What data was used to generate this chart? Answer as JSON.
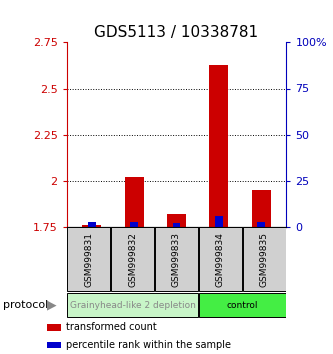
{
  "title": "GDS5113 / 10338781",
  "samples": [
    "GSM999831",
    "GSM999832",
    "GSM999833",
    "GSM999834",
    "GSM999835"
  ],
  "red_values": [
    1.757,
    2.02,
    1.82,
    2.63,
    1.95
  ],
  "blue_values_pct": [
    2.5,
    2.5,
    2.0,
    5.5,
    2.5
  ],
  "ylim_left": [
    1.75,
    2.75
  ],
  "ylim_right": [
    0,
    100
  ],
  "yticks_left": [
    1.75,
    2.0,
    2.25,
    2.5,
    2.75
  ],
  "yticks_right": [
    0,
    25,
    50,
    75,
    100
  ],
  "ytick_labels_left": [
    "1.75",
    "2",
    "2.25",
    "2.5",
    "2.75"
  ],
  "ytick_labels_right": [
    "0",
    "25",
    "50",
    "75",
    "100%"
  ],
  "grid_lines": [
    2.0,
    2.25,
    2.5
  ],
  "baseline": 1.75,
  "protocol_groups": [
    {
      "label": "Grainyhead-like 2 depletion",
      "samples": [
        0,
        1,
        2
      ],
      "color": "#c8f5c8",
      "text_color": "#888888"
    },
    {
      "label": "control",
      "samples": [
        3,
        4
      ],
      "color": "#44ee44",
      "text_color": "#000000"
    }
  ],
  "protocol_label": "protocol",
  "legend": [
    {
      "color": "#cc0000",
      "label": "transformed count"
    },
    {
      "color": "#0000cc",
      "label": "percentile rank within the sample"
    }
  ],
  "red_bar_width": 0.45,
  "blue_bar_width": 0.18,
  "bar_color_red": "#cc0000",
  "bar_color_blue": "#0000cc",
  "title_fontsize": 11,
  "tick_fontsize": 8,
  "left_tick_color": "#cc0000",
  "right_tick_color": "#0000bb"
}
